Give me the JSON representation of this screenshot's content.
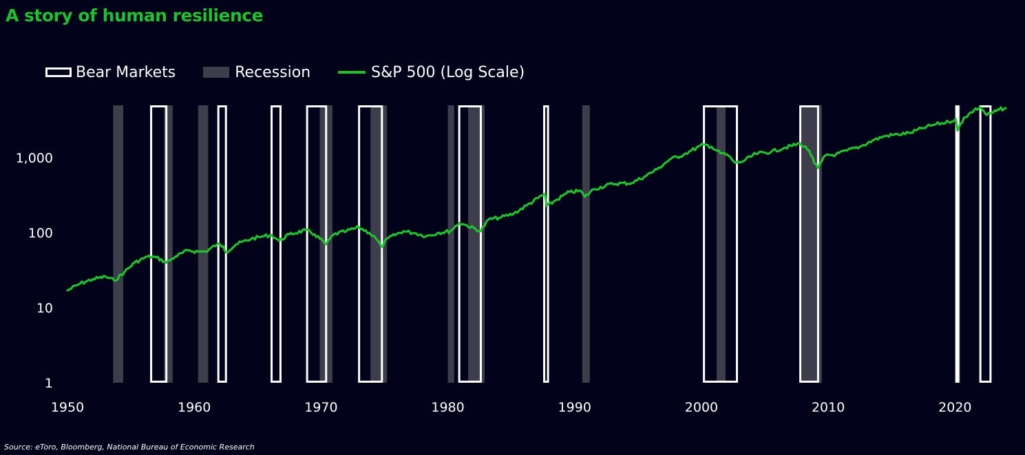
{
  "title": "A story of human resilience",
  "source": "Source: eToro, Bloomberg, National Bureau of Economic Research",
  "colors": {
    "title": "#22c02f",
    "line": "#22c02f",
    "recession": "#3e3d4c",
    "bear": "#ffffff",
    "background": "#02021a"
  },
  "legend": {
    "bear": "Bear Markets",
    "recession": "Recession",
    "line": "S&P 500 (Log Scale)"
  },
  "chart_data": {
    "type": "line",
    "title": "A story of human resilience",
    "x_axis": {
      "range": [
        1950,
        2024
      ],
      "ticks": [
        "1950",
        "1960",
        "1970",
        "1980",
        "1990",
        "2000",
        "2010",
        "2020"
      ]
    },
    "y_axis": {
      "scale": "log",
      "range": [
        1,
        5000
      ],
      "ticks": [
        "1",
        "10",
        "100",
        "1,000"
      ],
      "tick_values": [
        1,
        10,
        100,
        1000
      ]
    },
    "legend_placement": "top-left",
    "grid": false,
    "series": [
      {
        "name": "S&P 500 (Log Scale)",
        "points": [
          [
            1950.0,
            17
          ],
          [
            1951.0,
            21
          ],
          [
            1952.0,
            24
          ],
          [
            1953.0,
            26
          ],
          [
            1953.7,
            23
          ],
          [
            1954.5,
            30
          ],
          [
            1955.3,
            40
          ],
          [
            1956.3,
            48
          ],
          [
            1957.0,
            47
          ],
          [
            1957.8,
            40
          ],
          [
            1958.5,
            48
          ],
          [
            1959.5,
            58
          ],
          [
            1960.3,
            56
          ],
          [
            1960.9,
            56
          ],
          [
            1961.8,
            70
          ],
          [
            1962.3,
            66
          ],
          [
            1962.5,
            55
          ],
          [
            1963.3,
            70
          ],
          [
            1964.5,
            83
          ],
          [
            1965.5,
            90
          ],
          [
            1966.1,
            93
          ],
          [
            1966.7,
            78
          ],
          [
            1967.5,
            95
          ],
          [
            1968.8,
            108
          ],
          [
            1969.5,
            95
          ],
          [
            1970.4,
            70
          ],
          [
            1971.0,
            95
          ],
          [
            1972.0,
            105
          ],
          [
            1973.0,
            118
          ],
          [
            1973.8,
            100
          ],
          [
            1974.3,
            85
          ],
          [
            1974.75,
            65
          ],
          [
            1975.3,
            85
          ],
          [
            1976.5,
            105
          ],
          [
            1977.5,
            98
          ],
          [
            1978.3,
            90
          ],
          [
            1979.3,
            100
          ],
          [
            1980.2,
            105
          ],
          [
            1980.9,
            135
          ],
          [
            1981.5,
            125
          ],
          [
            1982.6,
            105
          ],
          [
            1983.2,
            150
          ],
          [
            1984.2,
            160
          ],
          [
            1985.2,
            180
          ],
          [
            1986.2,
            230
          ],
          [
            1987.65,
            330
          ],
          [
            1987.8,
            225
          ],
          [
            1988.5,
            270
          ],
          [
            1989.6,
            350
          ],
          [
            1990.5,
            360
          ],
          [
            1990.8,
            300
          ],
          [
            1991.5,
            380
          ],
          [
            1993.0,
            450
          ],
          [
            1994.5,
            460
          ],
          [
            1995.5,
            560
          ],
          [
            1996.5,
            700
          ],
          [
            1997.5,
            950
          ],
          [
            1998.6,
            1100
          ],
          [
            1999.2,
            1250
          ],
          [
            2000.2,
            1500
          ],
          [
            2000.8,
            1400
          ],
          [
            2001.5,
            1150
          ],
          [
            2002.0,
            1100
          ],
          [
            2002.7,
            850
          ],
          [
            2003.3,
            900
          ],
          [
            2004.3,
            1130
          ],
          [
            2005.5,
            1200
          ],
          [
            2006.5,
            1350
          ],
          [
            2007.8,
            1550
          ],
          [
            2008.5,
            1250
          ],
          [
            2008.9,
            850
          ],
          [
            2009.2,
            730
          ],
          [
            2009.8,
            1080
          ],
          [
            2010.6,
            1100
          ],
          [
            2011.5,
            1250
          ],
          [
            2012.5,
            1400
          ],
          [
            2013.5,
            1700
          ],
          [
            2014.5,
            1950
          ],
          [
            2015.5,
            2050
          ],
          [
            2016.5,
            2150
          ],
          [
            2017.5,
            2500
          ],
          [
            2018.5,
            2800
          ],
          [
            2019.5,
            3000
          ],
          [
            2020.05,
            3300
          ],
          [
            2020.2,
            2300
          ],
          [
            2020.7,
            3400
          ],
          [
            2021.5,
            4300
          ],
          [
            2022.0,
            4700
          ],
          [
            2022.5,
            3700
          ],
          [
            2023.0,
            4000
          ],
          [
            2023.5,
            4400
          ],
          [
            2024.0,
            4600
          ]
        ]
      }
    ],
    "recessions": [
      [
        1953.6,
        1954.4
      ],
      [
        1957.6,
        1958.3
      ],
      [
        1960.3,
        1961.1
      ],
      [
        1969.9,
        1970.9
      ],
      [
        1973.9,
        1975.2
      ],
      [
        1980.0,
        1980.5
      ],
      [
        1981.6,
        1982.9
      ],
      [
        1990.6,
        1991.2
      ],
      [
        2001.2,
        2001.9
      ],
      [
        2007.9,
        2009.5
      ],
      [
        2020.1,
        2020.4
      ]
    ],
    "bear_markets": [
      [
        1956.6,
        1957.8
      ],
      [
        1961.9,
        1962.5
      ],
      [
        1966.1,
        1966.8
      ],
      [
        1968.9,
        1970.4
      ],
      [
        1973.0,
        1974.8
      ],
      [
        1980.9,
        1982.6
      ],
      [
        1987.6,
        1987.9
      ],
      [
        2000.2,
        2002.8
      ],
      [
        2007.8,
        2009.2
      ],
      [
        2020.1,
        2020.25
      ],
      [
        2022.0,
        2022.8
      ]
    ]
  }
}
